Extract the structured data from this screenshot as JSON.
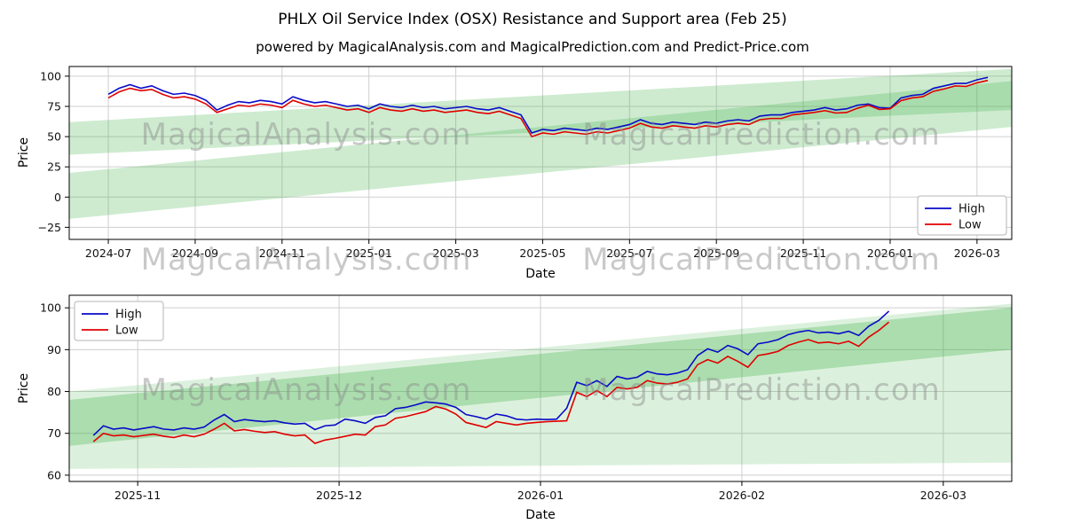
{
  "figure": {
    "title": "PHLX Oil Service Index (OSX) Resistance and Support area (Feb 25)",
    "subtitle": "powered by MagicalAnalysis.com and MagicalPrediction.com and Predict-Price.com",
    "watermarks": [
      "MagicalAnalysis.com",
      "MagicalPrediction.com"
    ]
  },
  "chart_data": [
    {
      "type": "line",
      "name": "full-history-chart",
      "xlabel": "Date",
      "ylabel": "Price",
      "x_encoding": "months since 2024-07",
      "xlim": [
        -0.9,
        20.8
      ],
      "ylim": [
        -35,
        108
      ],
      "grid": true,
      "yticks": [
        -25,
        0,
        25,
        50,
        75,
        100
      ],
      "xtick_values": [
        0,
        2,
        4,
        6,
        8,
        10,
        12,
        14,
        16,
        18,
        20
      ],
      "xtick_labels": [
        "2024-07",
        "2024-09",
        "2024-11",
        "2025-01",
        "2025-03",
        "2025-05",
        "2025-07",
        "2025-09",
        "2025-11",
        "2026-01",
        "2026-03"
      ],
      "legend_position": "lower right",
      "series": [
        {
          "name": "High",
          "color": "#0a0ac8",
          "x0": 0,
          "dx": 0.25,
          "values": [
            85,
            90,
            93,
            90,
            92,
            88,
            85,
            86,
            84,
            80,
            72,
            76,
            79,
            78,
            80,
            79,
            77,
            83,
            80,
            78,
            79,
            77,
            75,
            76,
            73,
            77,
            75,
            74,
            76,
            74,
            75,
            73,
            74,
            75,
            73,
            72,
            74,
            71,
            68,
            53,
            56,
            55,
            57,
            56,
            55,
            57,
            56,
            58,
            60,
            64,
            61,
            60,
            62,
            61,
            60,
            62,
            61,
            63,
            64,
            63,
            67,
            68,
            68,
            70,
            71,
            72,
            74,
            72,
            73,
            76,
            77,
            74,
            73.5,
            82,
            84,
            85,
            90,
            92,
            94,
            94,
            97,
            99
          ]
        },
        {
          "name": "Low",
          "color": "#e00000",
          "x0": 0,
          "dx": 0.25,
          "values": [
            82,
            87,
            90,
            88,
            89,
            85,
            82,
            83,
            81,
            77,
            70,
            73,
            76,
            75,
            77,
            76,
            74,
            80,
            77,
            75,
            76,
            74,
            72,
            73,
            70,
            74,
            72,
            71,
            73,
            71,
            72,
            70,
            71,
            72,
            70,
            69,
            71,
            68,
            65,
            50,
            53,
            52,
            54,
            53,
            52,
            54,
            53,
            55,
            57,
            61,
            58,
            57,
            59,
            58,
            57,
            59,
            58,
            60,
            61,
            60,
            64,
            65,
            65,
            68,
            69,
            70,
            71.5,
            69.5,
            70,
            73.5,
            76,
            72.5,
            73,
            79.8,
            82,
            83,
            87.5,
            89.5,
            92,
            91.5,
            94.5,
            96.5
          ]
        }
      ],
      "bands": [
        {
          "name": "resistance-band",
          "color": "#3cb043",
          "opacity": 0.25,
          "points": [
            [
              -0.9,
              35
            ],
            [
              20.8,
              72
            ],
            [
              20.8,
              106
            ],
            [
              -0.9,
              62
            ]
          ]
        },
        {
          "name": "support-band",
          "color": "#3cb043",
          "opacity": 0.25,
          "points": [
            [
              -0.9,
              -18
            ],
            [
              20.8,
              58
            ],
            [
              20.8,
              96
            ],
            [
              -0.9,
              20
            ]
          ]
        }
      ]
    },
    {
      "type": "line",
      "name": "recent-zoom-chart",
      "xlabel": "Date",
      "ylabel": "Price",
      "x_encoding": "months since 2024-07",
      "xlim": [
        15.66,
        20.34
      ],
      "ylim": [
        58.5,
        103
      ],
      "grid": true,
      "yticks": [
        60,
        70,
        80,
        90,
        100
      ],
      "xtick_values": [
        16,
        17,
        18,
        19,
        20
      ],
      "xtick_labels": [
        "2025-11",
        "2025-12",
        "2026-01",
        "2026-02",
        "2026-03"
      ],
      "legend_position": "upper left",
      "series": [
        {
          "name": "High",
          "color": "#0a0ac8",
          "x0": 15.78,
          "dx": 0.05,
          "values": [
            69.5,
            71.8,
            71.0,
            71.3,
            70.8,
            71.2,
            71.6,
            71.0,
            70.8,
            71.3,
            71.0,
            71.5,
            73.2,
            74.5,
            72.8,
            73.3,
            73.0,
            72.8,
            73.0,
            72.5,
            72.2,
            72.4,
            70.9,
            71.8,
            72.0,
            73.4,
            73.0,
            72.4,
            73.8,
            74.2,
            75.9,
            76.2,
            76.8,
            77.5,
            77.3,
            77.0,
            76.2,
            74.5,
            74.0,
            73.4,
            74.6,
            74.2,
            73.4,
            73.2,
            73.4,
            73.3,
            73.4,
            76.0,
            82.2,
            81.4,
            82.6,
            81.2,
            83.6,
            83.0,
            83.4,
            84.8,
            84.2,
            84.0,
            84.4,
            85.2,
            88.6,
            90.2,
            89.4,
            91.0,
            90.2,
            88.8,
            91.4,
            91.8,
            92.4,
            93.6,
            94.2,
            94.6,
            94.0,
            94.2,
            93.8,
            94.4,
            93.4,
            95.6,
            97.0,
            99.2
          ]
        },
        {
          "name": "Low",
          "color": "#e00000",
          "x0": 15.78,
          "dx": 0.05,
          "values": [
            68.0,
            70.0,
            69.4,
            69.6,
            69.2,
            69.5,
            69.8,
            69.3,
            69.0,
            69.6,
            69.2,
            69.8,
            71.0,
            72.4,
            70.6,
            70.9,
            70.5,
            70.2,
            70.4,
            69.8,
            69.4,
            69.6,
            67.6,
            68.4,
            68.8,
            69.3,
            69.8,
            69.6,
            71.6,
            72.0,
            73.6,
            74.0,
            74.6,
            75.2,
            76.4,
            75.8,
            74.6,
            72.6,
            72.0,
            71.4,
            72.8,
            72.4,
            72.0,
            72.4,
            72.6,
            72.8,
            72.9,
            73.0,
            79.8,
            78.8,
            80.2,
            78.8,
            81.0,
            80.6,
            81.0,
            82.6,
            82.0,
            81.8,
            82.2,
            83.0,
            86.4,
            87.6,
            86.8,
            88.4,
            87.2,
            85.8,
            88.6,
            89.0,
            89.6,
            91.0,
            91.8,
            92.4,
            91.6,
            91.8,
            91.4,
            92.0,
            90.8,
            93.0,
            94.6,
            96.6
          ]
        }
      ],
      "bands": [
        {
          "name": "support-band-wide",
          "color": "#3cb043",
          "opacity": 0.18,
          "points": [
            [
              15.66,
              61.5
            ],
            [
              20.34,
              63
            ],
            [
              20.34,
              101
            ],
            [
              15.66,
              80
            ]
          ]
        },
        {
          "name": "resistance-band-core",
          "color": "#3cb043",
          "opacity": 0.3,
          "points": [
            [
              15.66,
              67
            ],
            [
              20.34,
              90
            ],
            [
              20.34,
              100
            ],
            [
              15.66,
              78
            ]
          ]
        }
      ]
    }
  ]
}
